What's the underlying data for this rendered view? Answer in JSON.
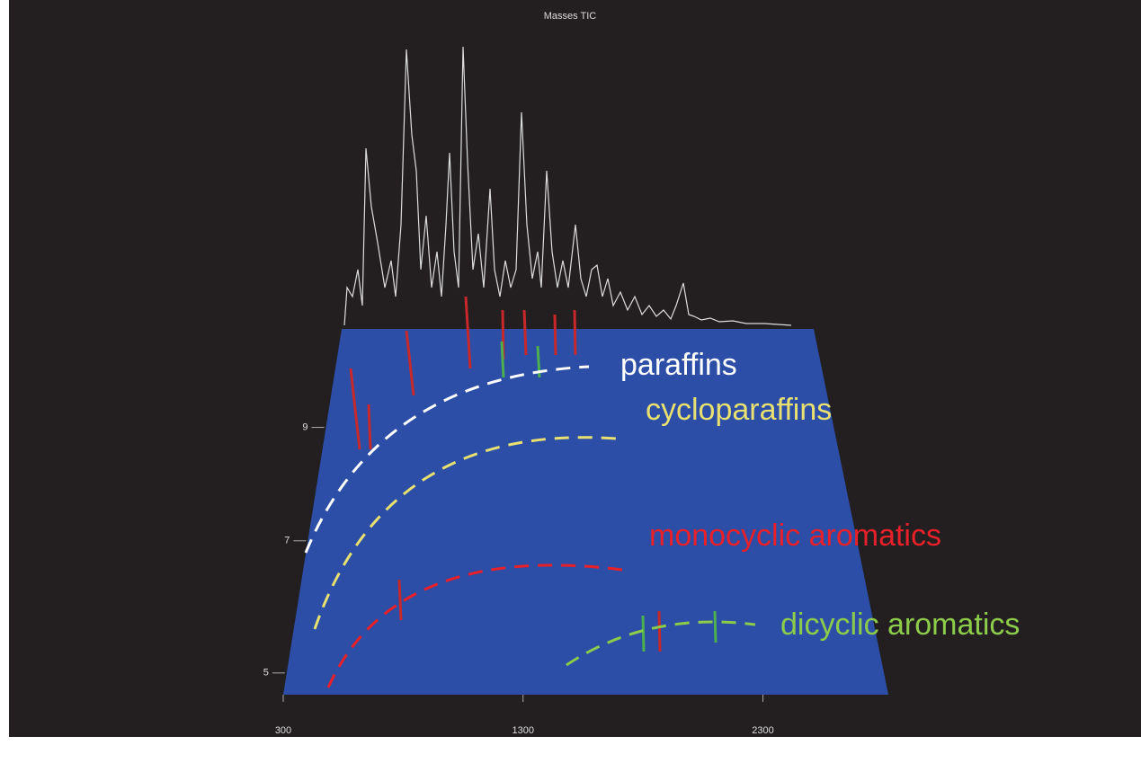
{
  "chart_data": {
    "type": "surface",
    "title": "Masses TIC",
    "xlim": [
      300,
      2823
    ],
    "xticks": [
      300,
      1300,
      2300
    ],
    "ylim": [
      4.7,
      11
    ],
    "yticks": [
      9,
      7,
      5
    ],
    "surface_color": "#2c4ea6",
    "annotations": [
      {
        "text": "paraffins",
        "color": "#ffffff"
      },
      {
        "text": "cycloparaffins",
        "color": "#e8e070"
      },
      {
        "text": "monocyclic aromatics",
        "color": "#e8202a"
      },
      {
        "text": "dicyclic aromatics",
        "color": "#8ccc4a"
      }
    ]
  }
}
